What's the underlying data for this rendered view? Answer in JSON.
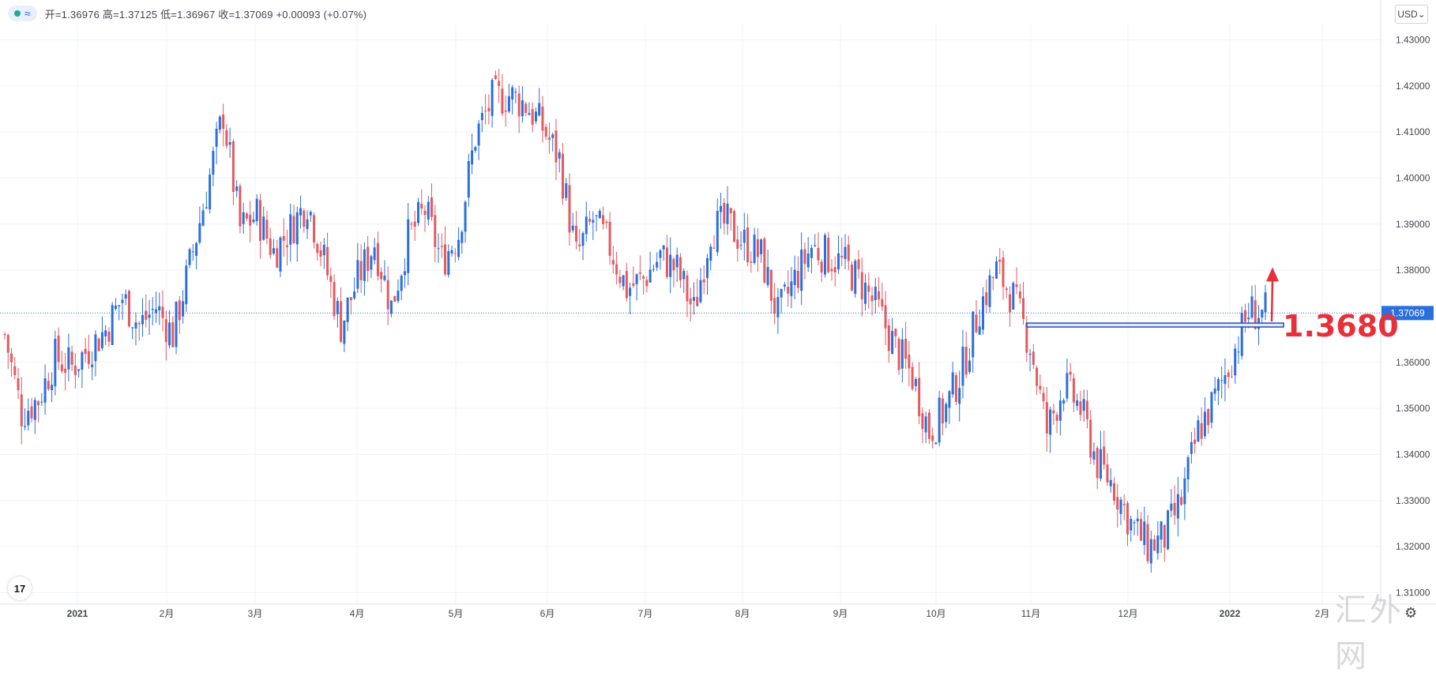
{
  "legend": {
    "icon_wave": "≈",
    "ohlc_text": "开=1.36976 高=1.37125 低=1.36967 收=1.37069 +0.00093 (+0.07%)"
  },
  "currency_button": "USD⌄",
  "tv_logo": "17",
  "watermark": "汇外网",
  "annotation": {
    "text": "1.3680",
    "color": "#e8303b"
  },
  "chart_data": {
    "type": "candlestick",
    "y_ticks": [
      "1.43000",
      "1.42000",
      "1.41000",
      "1.40000",
      "1.39000",
      "1.38000",
      "1.37000",
      "1.36000",
      "1.35000",
      "1.34000",
      "1.33000",
      "1.32000",
      "1.31000"
    ],
    "x_ticks": [
      "2021",
      "2月",
      "3月",
      "4月",
      "5月",
      "6月",
      "7月",
      "8月",
      "9月",
      "10月",
      "11月",
      "12月",
      "2022",
      "2月"
    ],
    "ylim": [
      1.3075,
      1.4335
    ],
    "last_price_label": "1.37069",
    "last_price": 1.37069,
    "horizontal_level": 1.368,
    "grid": true,
    "colors": {
      "up": "#2a6fdb",
      "down": "#e45a5f",
      "last_price": "#2a6fdb",
      "level_line": "#2a4fa8"
    },
    "weekly_closes": [
      1.366,
      1.349,
      1.352,
      1.361,
      1.359,
      1.363,
      1.367,
      1.374,
      1.368,
      1.372,
      1.366,
      1.381,
      1.397,
      1.414,
      1.389,
      1.392,
      1.384,
      1.389,
      1.395,
      1.382,
      1.368,
      1.378,
      1.386,
      1.372,
      1.387,
      1.393,
      1.382,
      1.388,
      1.409,
      1.417,
      1.418,
      1.416,
      1.411,
      1.404,
      1.383,
      1.391,
      1.385,
      1.376,
      1.378,
      1.383,
      1.38,
      1.371,
      1.389,
      1.39,
      1.386,
      1.383,
      1.37,
      1.378,
      1.385,
      1.383,
      1.381,
      1.377,
      1.371,
      1.363,
      1.357,
      1.345,
      1.35,
      1.359,
      1.372,
      1.38,
      1.374,
      1.364,
      1.345,
      1.355,
      1.35,
      1.338,
      1.333,
      1.325,
      1.32,
      1.322,
      1.33,
      1.345,
      1.352,
      1.361,
      1.371,
      1.3707
    ]
  }
}
